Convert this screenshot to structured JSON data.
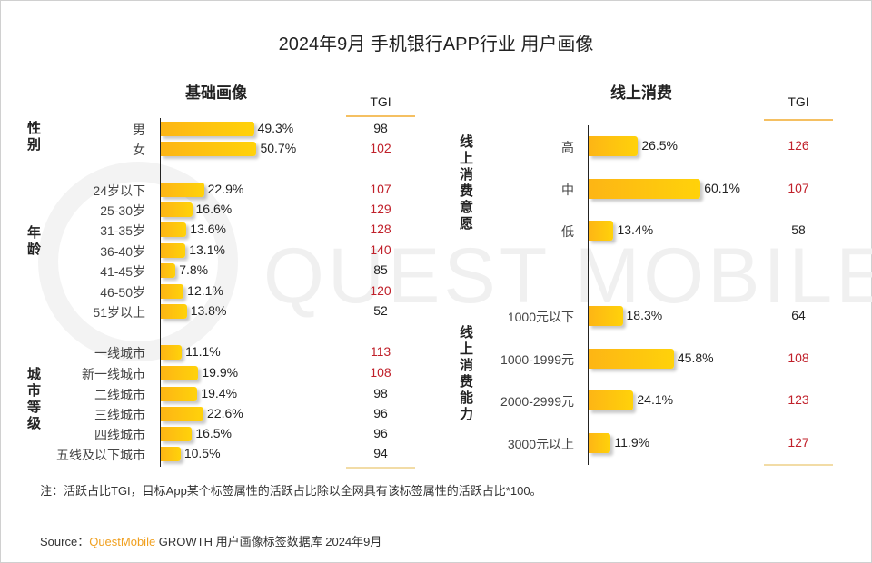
{
  "title": "2024年9月 手机银行APP行业 用户画像",
  "watermark": "QUEST MOBILE",
  "left": {
    "section_title": "基础画像",
    "tgi_header": "TGI",
    "groups": [
      {
        "label": "性别",
        "items": [
          {
            "label": "男",
            "value": 49.3,
            "value_label": "49.3%",
            "tgi": 98
          },
          {
            "label": "女",
            "value": 50.7,
            "value_label": "50.7%",
            "tgi": 102
          }
        ]
      },
      {
        "label": "年龄",
        "items": [
          {
            "label": "24岁以下",
            "value": 22.9,
            "value_label": "22.9%",
            "tgi": 107
          },
          {
            "label": "25-30岁",
            "value": 16.6,
            "value_label": "16.6%",
            "tgi": 129
          },
          {
            "label": "31-35岁",
            "value": 13.6,
            "value_label": "13.6%",
            "tgi": 128
          },
          {
            "label": "36-40岁",
            "value": 13.1,
            "value_label": "13.1%",
            "tgi": 140
          },
          {
            "label": "41-45岁",
            "value": 7.8,
            "value_label": "7.8%",
            "tgi": 85
          },
          {
            "label": "46-50岁",
            "value": 12.1,
            "value_label": "12.1%",
            "tgi": 120
          },
          {
            "label": "51岁以上",
            "value": 13.8,
            "value_label": "13.8%",
            "tgi": 52
          }
        ]
      },
      {
        "label": "城市等级",
        "items": [
          {
            "label": "一线城市",
            "value": 11.1,
            "value_label": "11.1%",
            "tgi": 113
          },
          {
            "label": "新一线城市",
            "value": 19.9,
            "value_label": "19.9%",
            "tgi": 108
          },
          {
            "label": "二线城市",
            "value": 19.4,
            "value_label": "19.4%",
            "tgi": 98
          },
          {
            "label": "三线城市",
            "value": 22.6,
            "value_label": "22.6%",
            "tgi": 96
          },
          {
            "label": "四线城市",
            "value": 16.5,
            "value_label": "16.5%",
            "tgi": 96
          },
          {
            "label": "五线及以下城市",
            "value": 10.5,
            "value_label": "10.5%",
            "tgi": 94
          }
        ]
      }
    ]
  },
  "right": {
    "section_title": "线上消费",
    "tgi_header": "TGI",
    "groups": [
      {
        "label": "线上消费意愿",
        "items": [
          {
            "label": "高",
            "value": 26.5,
            "value_label": "26.5%",
            "tgi": 126
          },
          {
            "label": "中",
            "value": 60.1,
            "value_label": "60.1%",
            "tgi": 107
          },
          {
            "label": "低",
            "value": 13.4,
            "value_label": "13.4%",
            "tgi": 58
          }
        ]
      },
      {
        "label": "线上消费能力",
        "items": [
          {
            "label": "1000元以下",
            "value": 18.3,
            "value_label": "18.3%",
            "tgi": 64
          },
          {
            "label": "1000-1999元",
            "value": 45.8,
            "value_label": "45.8%",
            "tgi": 108
          },
          {
            "label": "2000-2999元",
            "value": 24.1,
            "value_label": "24.1%",
            "tgi": 123
          },
          {
            "label": "3000元以上",
            "value": 11.9,
            "value_label": "11.9%",
            "tgi": 127
          }
        ]
      }
    ]
  },
  "colors": {
    "bar_start": "#fdb515",
    "bar_end": "#ffd20a",
    "tgi_high": "#c0202a",
    "tgi_normal": "#222222",
    "brand": "#f0a020"
  },
  "tgi_threshold": 100,
  "note": "注：活跃占比TGI，目标App某个标签属性的活跃占比除以全网具有该标签属性的活跃占比*100。",
  "source": {
    "prefix": "Source：",
    "brand": "QuestMobile",
    "suffix": " GROWTH 用户画像标签数据库 2024年9月"
  },
  "chart_data": [
    {
      "type": "bar",
      "orientation": "horizontal",
      "title": "基础画像",
      "unit": "%",
      "categories": [
        "男",
        "女",
        "24岁以下",
        "25-30岁",
        "31-35岁",
        "36-40岁",
        "41-45岁",
        "46-50岁",
        "51岁以上",
        "一线城市",
        "新一线城市",
        "二线城市",
        "三线城市",
        "四线城市",
        "五线及以下城市"
      ],
      "groups": [
        "性别",
        "性别",
        "年龄",
        "年龄",
        "年龄",
        "年龄",
        "年龄",
        "年龄",
        "年龄",
        "城市等级",
        "城市等级",
        "城市等级",
        "城市等级",
        "城市等级",
        "城市等级"
      ],
      "series": [
        {
          "name": "活跃占比",
          "values": [
            49.3,
            50.7,
            22.9,
            16.6,
            13.6,
            13.1,
            7.8,
            12.1,
            13.8,
            11.1,
            19.9,
            19.4,
            22.6,
            16.5,
            10.5
          ]
        },
        {
          "name": "TGI",
          "values": [
            98,
            102,
            107,
            129,
            128,
            140,
            85,
            120,
            52,
            113,
            108,
            98,
            96,
            96,
            94
          ]
        }
      ]
    },
    {
      "type": "bar",
      "orientation": "horizontal",
      "title": "线上消费",
      "unit": "%",
      "categories": [
        "高",
        "中",
        "低",
        "1000元以下",
        "1000-1999元",
        "2000-2999元",
        "3000元以上"
      ],
      "groups": [
        "线上消费意愿",
        "线上消费意愿",
        "线上消费意愿",
        "线上消费能力",
        "线上消费能力",
        "线上消费能力",
        "线上消费能力"
      ],
      "series": [
        {
          "name": "活跃占比",
          "values": [
            26.5,
            60.1,
            13.4,
            18.3,
            45.8,
            24.1,
            11.9
          ]
        },
        {
          "name": "TGI",
          "values": [
            126,
            107,
            58,
            64,
            108,
            123,
            127
          ]
        }
      ]
    }
  ]
}
